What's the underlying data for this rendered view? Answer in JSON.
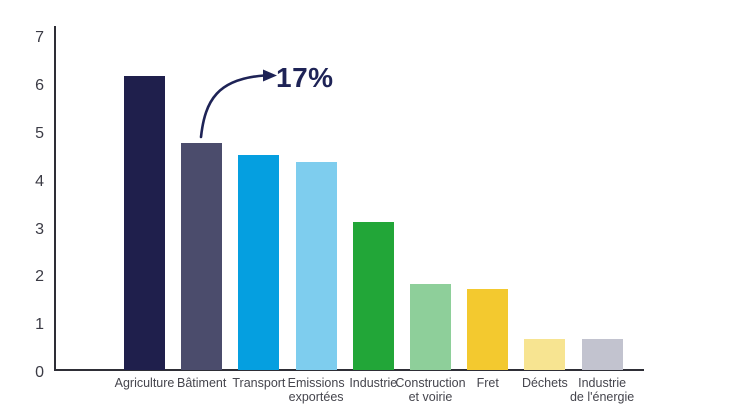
{
  "chart_data": {
    "type": "bar",
    "title": "",
    "xlabel": "",
    "ylabel": "",
    "categories": [
      "Agriculture",
      "Bâtiment",
      "Transport",
      "Emissions exportées",
      "Industrie",
      "Construction et voirie",
      "Fret",
      "Déchets",
      "Industrie de l'énergie"
    ],
    "category_lines": [
      [
        "Agriculture"
      ],
      [
        "Bâtiment"
      ],
      [
        "Transport"
      ],
      [
        "Emissions",
        "exportées"
      ],
      [
        "Industrie"
      ],
      [
        "Construction",
        "et voirie"
      ],
      [
        "Fret"
      ],
      [
        "Déchets"
      ],
      [
        "Industrie",
        "de l'énergie"
      ]
    ],
    "values": [
      6.15,
      4.75,
      4.5,
      4.35,
      3.1,
      1.8,
      1.7,
      0.65,
      0.65
    ],
    "bar_colors": [
      "#1f1f4c",
      "#4b4c6c",
      "#059fe0",
      "#7ecdee",
      "#22a638",
      "#8ecf9a",
      "#f3c92f",
      "#f7e491",
      "#c2c3cf"
    ],
    "ylim": [
      0,
      7
    ],
    "yticks": [
      0,
      1,
      2,
      3,
      4,
      5,
      6,
      7
    ],
    "grid": false,
    "legend": false,
    "annotation": {
      "text": "17%",
      "target_category": "Bâtiment"
    }
  },
  "colors": {
    "annotation": "#1e2356",
    "axis_line": "#2e2e36",
    "y_tick_label": "#3b3b45",
    "x_tick_label": "#45454d",
    "background": "#ffffff"
  }
}
